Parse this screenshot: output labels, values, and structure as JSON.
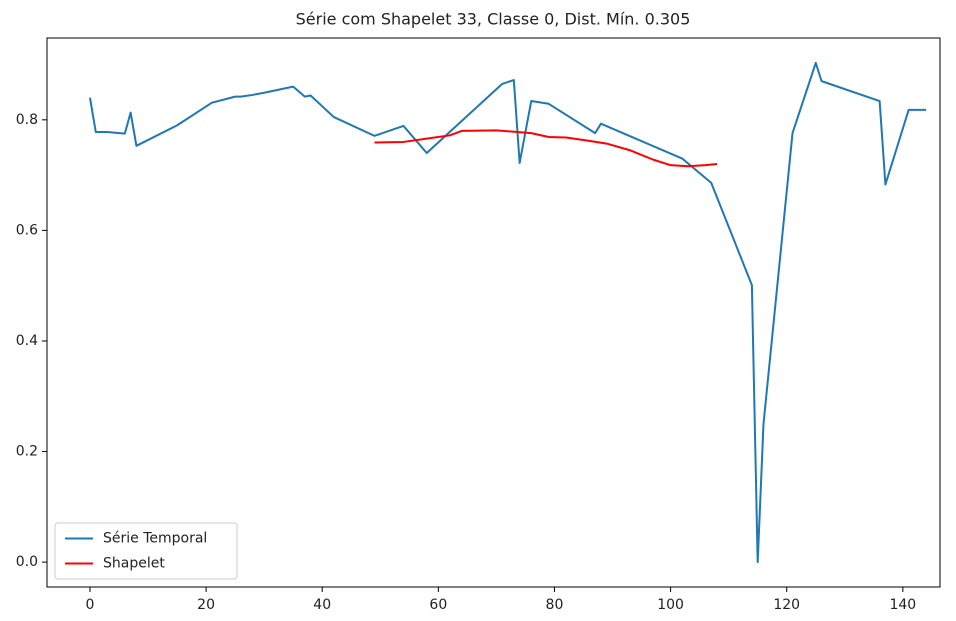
{
  "chart_data": {
    "type": "line",
    "title": "Série com Shapelet 33, Classe 0, Dist. Mín. 0.305",
    "series": [
      {
        "name": "Série Temporal",
        "color": "#1f77b4",
        "x": [
          0,
          1,
          3,
          6,
          7,
          8,
          15,
          21,
          25,
          26,
          28,
          30,
          35,
          37,
          38,
          42,
          49,
          54,
          58,
          71,
          73,
          74,
          76,
          79,
          87,
          88,
          102,
          107,
          114,
          115,
          116,
          121,
          125,
          126,
          136,
          137,
          141,
          144
        ],
        "values": [
          0.84,
          0.778,
          0.778,
          0.775,
          0.813,
          0.753,
          0.79,
          0.831,
          0.842,
          0.842,
          0.845,
          0.849,
          0.86,
          0.842,
          0.844,
          0.805,
          0.771,
          0.789,
          0.74,
          0.865,
          0.872,
          0.722,
          0.834,
          0.829,
          0.776,
          0.793,
          0.73,
          0.686,
          0.501,
          0,
          0.25,
          0.776,
          0.903,
          0.87,
          0.834,
          0.683,
          0.818,
          0.818
        ]
      },
      {
        "name": "Shapelet",
        "color": "#ff0000",
        "x": [
          49,
          54,
          58,
          62,
          64,
          70,
          76,
          79,
          82,
          86,
          89,
          93,
          97,
          100,
          103,
          106,
          108
        ],
        "values": [
          0.759,
          0.76,
          0.766,
          0.772,
          0.78,
          0.781,
          0.776,
          0.769,
          0.768,
          0.762,
          0.757,
          0.745,
          0.728,
          0.718,
          0.716,
          0.718,
          0.72
        ]
      }
    ],
    "xlim": [
      -7.4,
      146.4
    ],
    "xticks": [
      0,
      20,
      40,
      60,
      80,
      100,
      120,
      140
    ],
    "ylim": [
      -0.045,
      0.948
    ],
    "yticks": [
      {
        "value": 0,
        "label": "0.0"
      },
      0.2,
      0.4,
      0.6,
      0.8
    ],
    "grid": false,
    "legend": "lower left"
  }
}
